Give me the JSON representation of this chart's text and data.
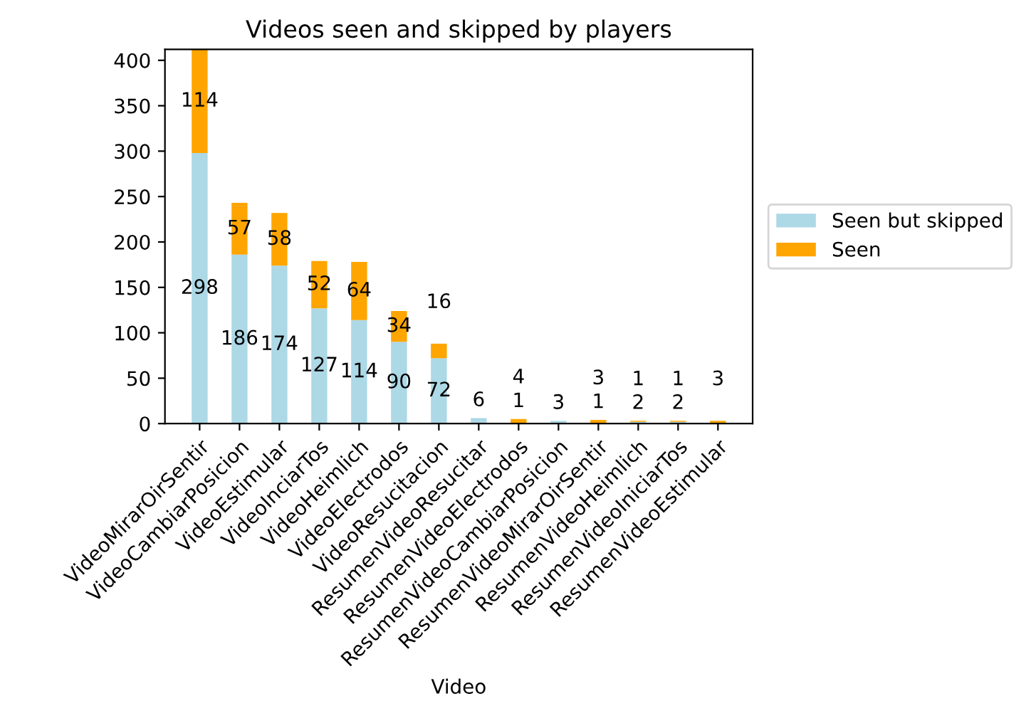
{
  "chart_data": {
    "type": "bar",
    "stacked": true,
    "title": "Videos seen and skipped by players",
    "xlabel": "Video",
    "categories": [
      "VideoMirarOirSentir",
      "VideoCambiarPosicion",
      "VideoEstimular",
      "VideoInciarTos",
      "VideoHeimlich",
      "VideoElectrodos",
      "VideoResucitacion",
      "ResumenVideoResucitar",
      "ResumenVideoElectrodos",
      "ResumenVideoCambiarPosicion",
      "ResumenVideoMirarOirSentir",
      "ResumenVideoHeimlich",
      "ResumenVideoIniciarTos",
      "ResumenVideoEstimular"
    ],
    "series": [
      {
        "name": "Seen but skipped",
        "color": "#add8e6",
        "values": [
          298,
          186,
          174,
          127,
          114,
          90,
          72,
          6,
          1,
          3,
          1,
          2,
          2,
          0
        ],
        "value_labels": [
          "298",
          "186",
          "174",
          "127",
          "114",
          "90",
          "72",
          "6",
          "1",
          "3",
          "1",
          "2",
          "2",
          null
        ]
      },
      {
        "name": "Seen",
        "color": "#ffa500",
        "values": [
          114,
          57,
          58,
          52,
          64,
          34,
          16,
          0,
          4,
          0,
          3,
          1,
          1,
          3
        ],
        "value_labels": [
          "114",
          "57",
          "58",
          "52",
          "64",
          "34",
          "16",
          null,
          "4",
          null,
          "3",
          "1",
          "1",
          "3"
        ]
      }
    ],
    "ylim": [
      0,
      412
    ],
    "yticks": [
      0,
      50,
      100,
      150,
      200,
      250,
      300,
      350,
      400
    ],
    "grid": false,
    "legend": "right"
  }
}
